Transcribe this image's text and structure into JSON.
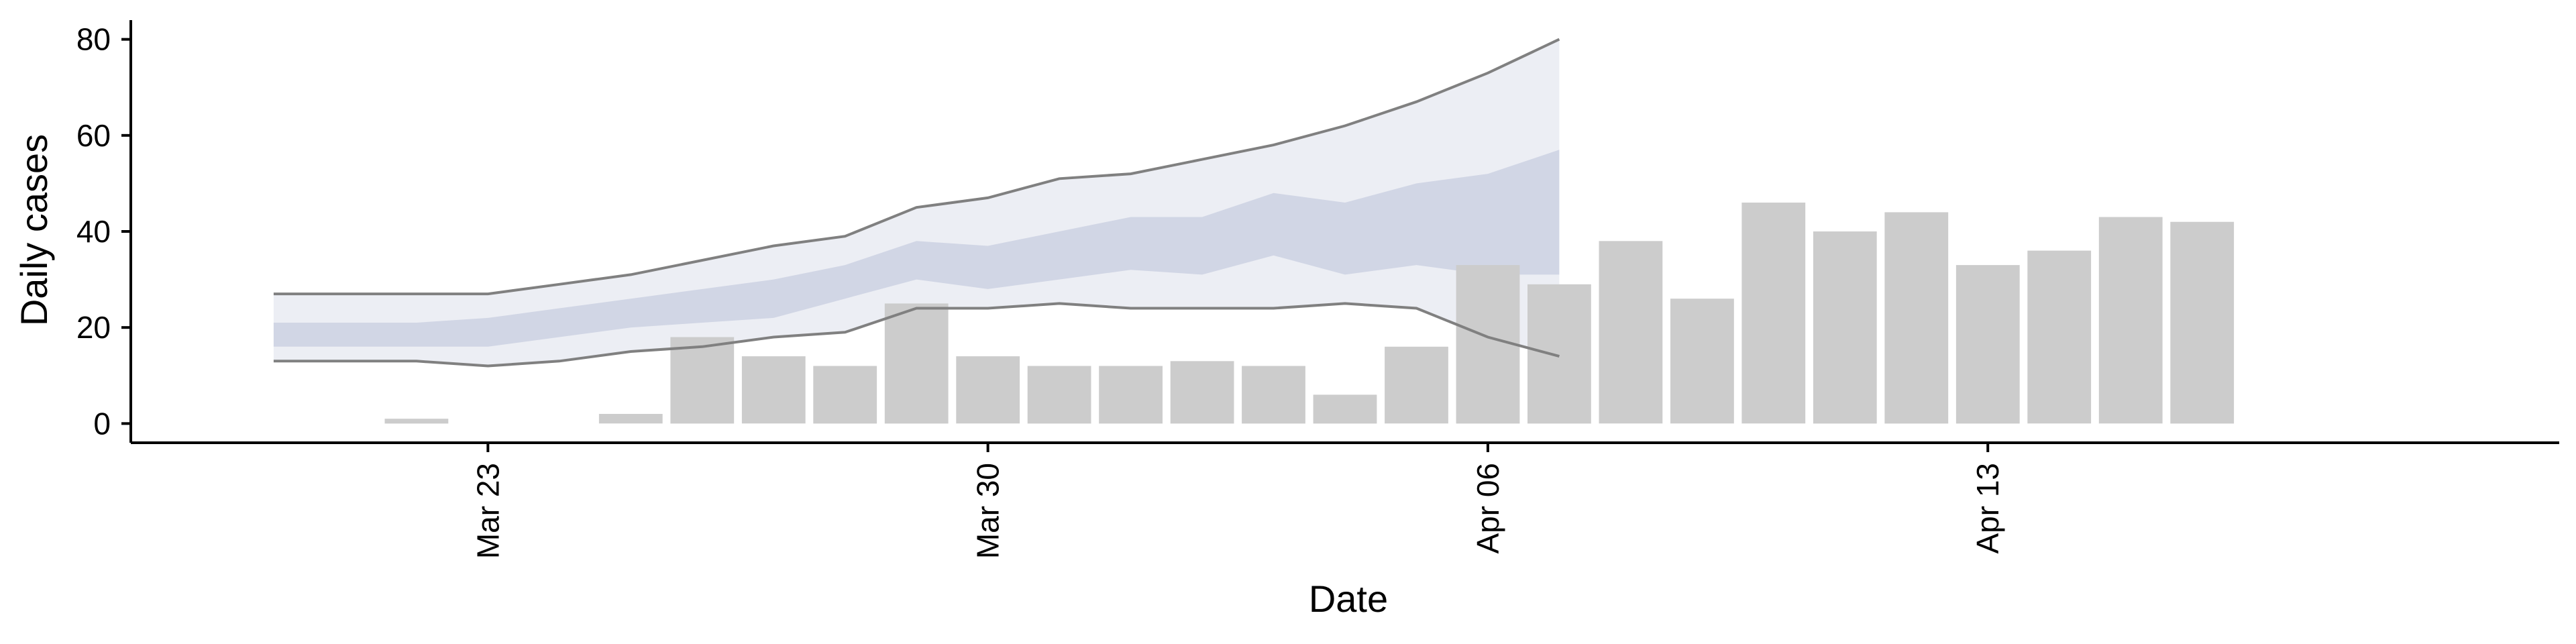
{
  "chart_data": {
    "type": "bar",
    "xlabel": "Date",
    "ylabel": "Daily cases",
    "xlim": [
      "2020-03-18",
      "2020-04-21"
    ],
    "ylim": [
      -4,
      84
    ],
    "yticks": [
      0,
      20,
      40,
      60,
      80
    ],
    "ytick_labels": [
      "0",
      "20",
      "40",
      "60",
      "80"
    ],
    "xticks": [
      "2020-03-23",
      "2020-03-30",
      "2020-04-06",
      "2020-04-13"
    ],
    "xtick_labels": [
      "Mar 23",
      "Mar 30",
      "Apr 06",
      "Apr 13"
    ],
    "grid": false,
    "legend": "none",
    "bars": {
      "color": "#cccccc",
      "dates": [
        "2020-03-22",
        "2020-03-23",
        "2020-03-24",
        "2020-03-25",
        "2020-03-26",
        "2020-03-27",
        "2020-03-28",
        "2020-03-29",
        "2020-03-30",
        "2020-03-31",
        "2020-04-01",
        "2020-04-02",
        "2020-04-03",
        "2020-04-04",
        "2020-04-05",
        "2020-04-06",
        "2020-04-07",
        "2020-04-08",
        "2020-04-09",
        "2020-04-10",
        "2020-04-11",
        "2020-04-12",
        "2020-04-13",
        "2020-04-14",
        "2020-04-15",
        "2020-04-16",
        "2020-04-17",
        "2020-04-18"
      ],
      "values": [
        1,
        0,
        0,
        2,
        18,
        14,
        12,
        25,
        14,
        12,
        12,
        13,
        12,
        6,
        16,
        33,
        29,
        38,
        26,
        46,
        40,
        44,
        33,
        36,
        43,
        42,
        0,
        0
      ]
    },
    "estimate": {
      "dates": [
        "2020-03-20",
        "2020-03-21",
        "2020-03-22",
        "2020-03-23",
        "2020-03-24",
        "2020-03-25",
        "2020-03-26",
        "2020-03-27",
        "2020-03-28",
        "2020-03-29",
        "2020-03-30",
        "2020-03-31",
        "2020-04-01",
        "2020-04-02",
        "2020-04-03",
        "2020-04-04",
        "2020-04-05",
        "2020-04-06",
        "2020-04-07"
      ],
      "outer_upper": [
        27,
        27,
        27,
        27,
        29,
        31,
        34,
        37,
        39,
        45,
        47,
        51,
        52,
        55,
        58,
        62,
        67,
        73,
        80
      ],
      "outer_lower": [
        13,
        13,
        13,
        12,
        13,
        15,
        16,
        18,
        19,
        24,
        24,
        25,
        24,
        24,
        24,
        25,
        24,
        18,
        14
      ],
      "inner_upper": [
        21,
        21,
        21,
        22,
        24,
        26,
        28,
        30,
        33,
        38,
        37,
        40,
        43,
        43,
        48,
        46,
        50,
        52,
        57
      ],
      "inner_lower": [
        16,
        16,
        16,
        16,
        18,
        20,
        21,
        22,
        26,
        30,
        28,
        30,
        32,
        31,
        35,
        31,
        33,
        31,
        31
      ],
      "outer_color": "#e6e8f0",
      "inner_color": "#c8cde0",
      "line_color": "#808080"
    }
  }
}
